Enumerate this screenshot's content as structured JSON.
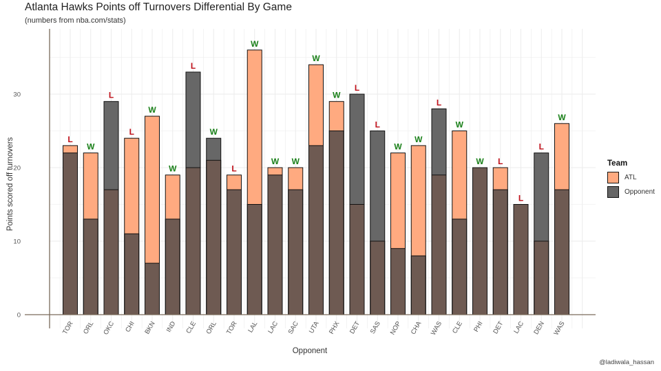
{
  "title": "Atlanta Hawks Points off Turnovers Differential By Game",
  "subtitle": "(numbers from nba.com/stats)",
  "caption": "@ladiwala_hassan",
  "colors": {
    "atl": "#FFAA80",
    "opponent": "#555555",
    "overlap": "#6E5A52",
    "win": "#1A8019",
    "loss": "#C0101A",
    "axis_line": "#7A6A5A",
    "grid": "#EBEBEB"
  },
  "legend": {
    "title": "Team",
    "items": [
      {
        "label": "ATL",
        "color": "#FFAA80"
      },
      {
        "label": "Opponent",
        "color": "#666666"
      }
    ]
  },
  "chart_data": {
    "type": "bar",
    "title": "Atlanta Hawks Points off Turnovers Differential By Game",
    "subtitle": "(numbers from nba.com/stats)",
    "xlabel": "Opponent",
    "ylabel": "Points scored off turnovers",
    "ylim": [
      0,
      38
    ],
    "yticks": [
      0,
      10,
      20,
      30
    ],
    "grid": true,
    "legend_position": "right",
    "bar_mode": "overlay",
    "categories": [
      "TOR",
      "ORL",
      "OKC",
      "CHI",
      "BKN",
      "IND",
      "CLE",
      "ORL",
      "TOR",
      "LAL",
      "LAC",
      "SAC",
      "UTA",
      "PHX",
      "DET",
      "SAS",
      "NOP",
      "CHA",
      "WAS",
      "CLE",
      "PHI",
      "DET",
      "LAC",
      "DEN",
      "WAS"
    ],
    "series": [
      {
        "name": "ATL",
        "values": [
          23,
          22,
          17,
          24,
          27,
          19,
          20,
          21,
          19,
          36,
          20,
          20,
          34,
          29,
          15,
          10,
          22,
          23,
          19,
          25,
          20,
          20,
          15,
          10,
          26
        ]
      },
      {
        "name": "Opponent",
        "values": [
          22,
          13,
          29,
          11,
          7,
          13,
          33,
          24,
          17,
          15,
          19,
          17,
          23,
          25,
          30,
          25,
          9,
          8,
          28,
          13,
          20,
          17,
          15,
          22,
          17
        ]
      }
    ],
    "annotations": [
      "L",
      "W",
      "L",
      "L",
      "W",
      "W",
      "L",
      "W",
      "L",
      "W",
      "W",
      "W",
      "W",
      "W",
      "L",
      "L",
      "W",
      "W",
      "L",
      "W",
      "W",
      "L",
      "L",
      "L",
      "W"
    ]
  }
}
